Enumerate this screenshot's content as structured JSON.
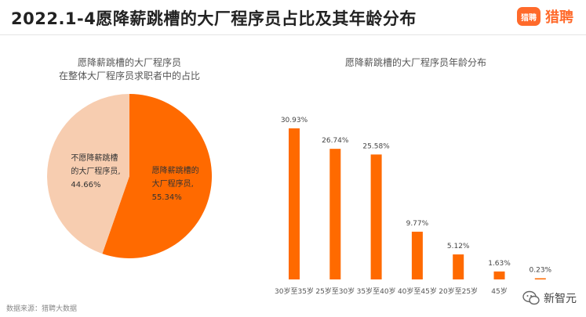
{
  "header": {
    "title": "2022.1-4愿降薪跳槽的大厂程序员占比及其年龄分布",
    "logo_badge": "猎聘",
    "logo_text": "猎聘"
  },
  "pie_title": [
    "愿降薪跳槽的大厂程序员",
    "在整体大厂程序员求职者中的占比"
  ],
  "bar_title": "愿降薪跳槽的大厂程序员年龄分布",
  "source": "数据来源：猎聘大数据",
  "watermark": "新智元",
  "colors": {
    "orange": "#ff6a00",
    "peach": "#f7cdb0",
    "logo": "#ff6a2b"
  },
  "chart_data": [
    {
      "type": "pie",
      "slices": [
        {
          "label": "愿降薪跳槽的大厂程序员,",
          "value": 55.34,
          "value_label": "55.34%",
          "color": "#ff6a00"
        },
        {
          "label": "不愿降薪跳槽的大厂程序员,",
          "value": 44.66,
          "value_label": "44.66%",
          "color": "#f7cdb0"
        }
      ]
    },
    {
      "type": "bar",
      "categories": [
        "30岁至35岁",
        "25岁至30岁",
        "35岁至40岁",
        "40岁至45岁",
        "20岁至25岁",
        "45岁",
        ""
      ],
      "values": [
        30.93,
        26.74,
        25.58,
        9.77,
        5.12,
        1.63,
        0.23
      ],
      "value_labels": [
        "30.93%",
        "26.74%",
        "25.58%",
        "9.77%",
        "5.12%",
        "1.63%",
        "0.23%"
      ],
      "color": "#ff6a00"
    }
  ]
}
